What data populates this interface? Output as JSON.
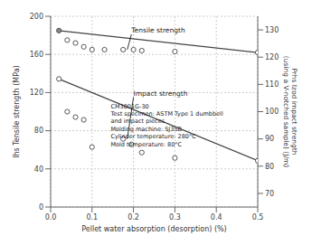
{
  "chart_data": {
    "type": "scatter",
    "x_label": "Pellet water absorption (desorption) (%)",
    "y_label": "lhs Tensile strength (MPa)",
    "y2_label": "Prhs Izod impact strength\n(using a V-notched sample) (J/m)",
    "xlim": [
      0,
      0.5
    ],
    "ylim": [
      0,
      200
    ],
    "y2lim": [
      65,
      135
    ],
    "xticks": [
      {
        "value": 0,
        "label": "0.0"
      },
      0.1,
      0.2,
      0.3,
      0.4,
      0.5
    ],
    "yticks": [
      0,
      40,
      80,
      120,
      160,
      200
    ],
    "y2ticks": [
      70,
      80,
      90,
      100,
      110,
      120,
      130
    ],
    "grid": true,
    "series": [
      {
        "type": "line",
        "axis": "y",
        "x": [
          0.02,
          0.5
        ],
        "values": [
          185,
          162
        ],
        "color": "#444444"
      },
      {
        "type": "scatter",
        "axis": "y",
        "x": [
          0.02,
          0.04,
          0.06,
          0.08,
          0.1,
          0.13,
          0.175,
          0.2,
          0.22,
          0.3,
          0.5
        ],
        "values": [
          185,
          175,
          172,
          168,
          165,
          165,
          165,
          165,
          164,
          163,
          162
        ],
        "color": "#444444",
        "colors": [
          "#888888",
          "white",
          "white",
          "white",
          "white",
          "white",
          "white",
          "white",
          "white",
          "white",
          "white"
        ]
      },
      {
        "type": "line",
        "axis": "y2",
        "x": [
          0.02,
          0.5
        ],
        "values": [
          112,
          82
        ],
        "color": "#444444"
      },
      {
        "type": "scatter",
        "axis": "y2",
        "x": [
          0.02,
          0.04,
          0.06,
          0.08,
          0.1,
          0.175,
          0.195,
          0.22,
          0.3,
          0.5
        ],
        "values": [
          112,
          100,
          98,
          97,
          87,
          90,
          88,
          85,
          83,
          82
        ],
        "color": "#444444"
      }
    ],
    "annotations": [
      {
        "text": "Tensile strength",
        "x": 0.195,
        "y": 181,
        "point": {
          "x": 0.185,
          "y": 165
        }
      },
      {
        "text": "Impact strength",
        "x": 0.2,
        "y": 115,
        "point": {
          "x": 0.185,
          "y": 90,
          "axis": "y2"
        }
      },
      {
        "text": "CM3001G-30\nTest specimen: ASTM Type 1 dumbbell\nand impact pieces\nMolding machine: SJ35B\nCylinder temperature: 280°C\nMold temperature: 80°C",
        "x": 0.145,
        "y": 62
      }
    ]
  }
}
